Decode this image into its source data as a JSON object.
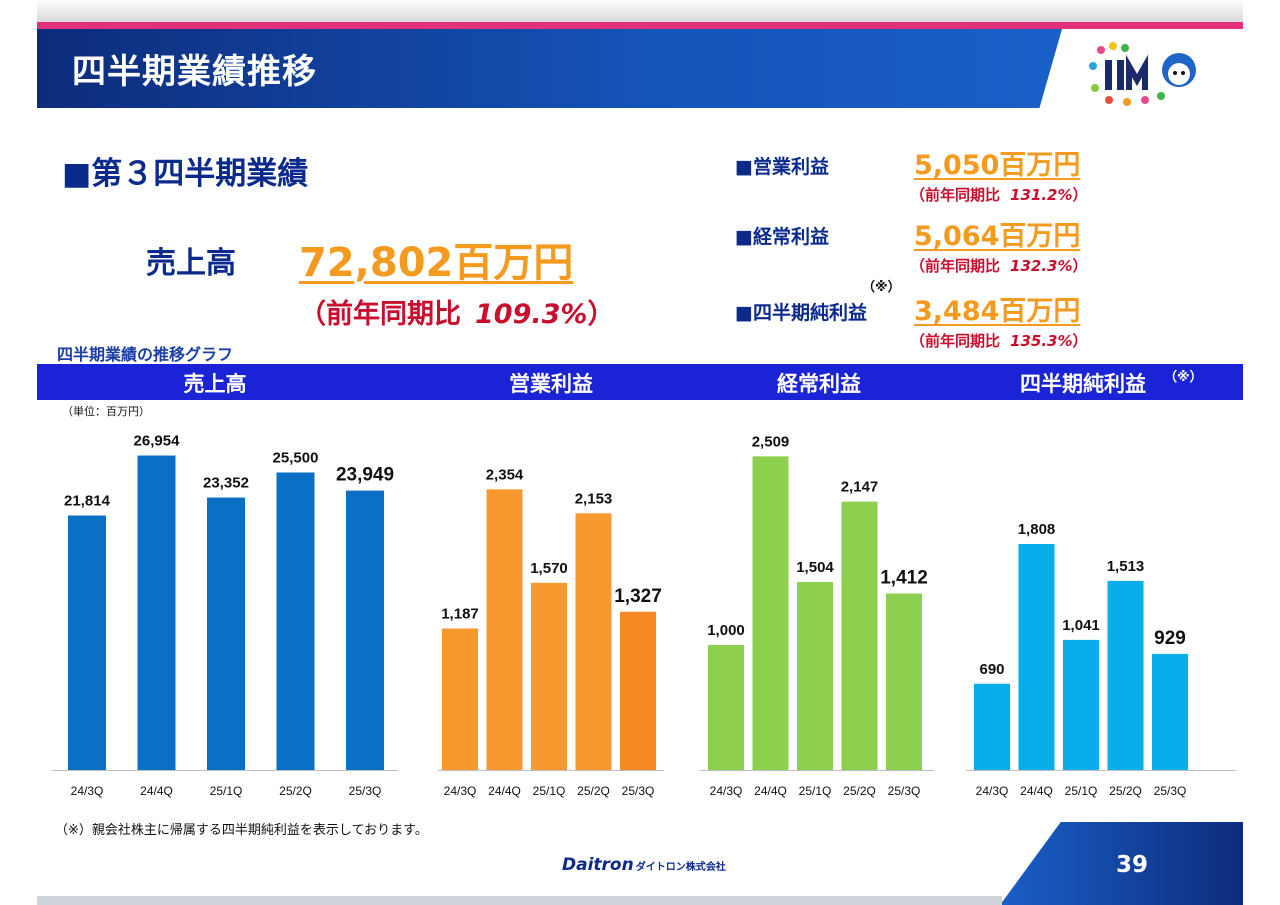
{
  "header": {
    "title": "四半期業績推移"
  },
  "summary": {
    "section_title": "■第３四半期業績",
    "sales_label": "売上高",
    "sales_value": "72,802百万円",
    "sales_yoy_prefix": "（前年同期比",
    "sales_yoy_value": "109.3%",
    "sales_yoy_suffix": "）",
    "kpis": [
      {
        "label": "■営業利益",
        "value": "5,050百万円",
        "yoy_prefix": "（前年同期比",
        "yoy_value": "131.2%",
        "yoy_suffix": "）"
      },
      {
        "label": "■経常利益",
        "value": "5,064百万円",
        "yoy_prefix": "（前年同期比",
        "yoy_value": "132.3%",
        "yoy_suffix": "）"
      },
      {
        "label": "■四半期純利益",
        "value": "3,484百万円",
        "yoy_prefix": "（前年同期比",
        "yoy_value": "135.3%",
        "yoy_suffix": "）",
        "note": "（※）"
      }
    ]
  },
  "graph_title": "四半期業績の推移グラフ",
  "unit_label": "（単位：百万円）",
  "chart_headers": [
    "売上高",
    "営業利益",
    "経常利益",
    "四半期純利益"
  ],
  "chart_header_note": "（※）",
  "colors": {
    "sales": "#0a70c6",
    "operating": "#f7992f",
    "operating_last": "#f58a23",
    "ordinary": "#8dcf4f",
    "net": "#07aee9",
    "accent": "#f39a1f",
    "yoy": "#c8102e"
  },
  "chart_data": [
    {
      "type": "bar",
      "title": "売上高",
      "categories": [
        "24/3Q",
        "24/4Q",
        "25/1Q",
        "25/2Q",
        "25/3Q"
      ],
      "values": [
        21814,
        26954,
        23352,
        25500,
        23949
      ],
      "labels": [
        "21,814",
        "26,954",
        "23,352",
        "25,500",
        "23,949"
      ],
      "ylim": [
        0,
        27000
      ]
    },
    {
      "type": "bar",
      "title": "営業利益",
      "categories": [
        "24/3Q",
        "24/4Q",
        "25/1Q",
        "25/2Q",
        "25/3Q"
      ],
      "values": [
        1187,
        2354,
        1570,
        2153,
        1327
      ],
      "labels": [
        "1,187",
        "2,354",
        "1,570",
        "2,153",
        "1,327"
      ],
      "ylim": [
        0,
        2600
      ]
    },
    {
      "type": "bar",
      "title": "経常利益",
      "categories": [
        "24/3Q",
        "24/4Q",
        "25/1Q",
        "25/2Q",
        "25/3Q"
      ],
      "values": [
        1000,
        2509,
        1504,
        2147,
        1412
      ],
      "labels": [
        "1,000",
        "2,509",
        "1,504",
        "2,147",
        "1,412"
      ],
      "ylim": [
        0,
        2600
      ]
    },
    {
      "type": "bar",
      "title": "四半期純利益",
      "categories": [
        "24/3Q",
        "24/4Q",
        "25/1Q",
        "25/2Q",
        "25/3Q"
      ],
      "values": [
        690,
        1808,
        1041,
        1513,
        929
      ],
      "labels": [
        "690",
        "1,808",
        "1,041",
        "1,513",
        "929"
      ],
      "ylim": [
        0,
        2600
      ]
    }
  ],
  "footnote": "（※）親会社株主に帰属する四半期純利益を表示しております。",
  "footer": {
    "brand": "Daitron",
    "brand_kana": "ダイトロン株式会社",
    "page_number": "39"
  }
}
